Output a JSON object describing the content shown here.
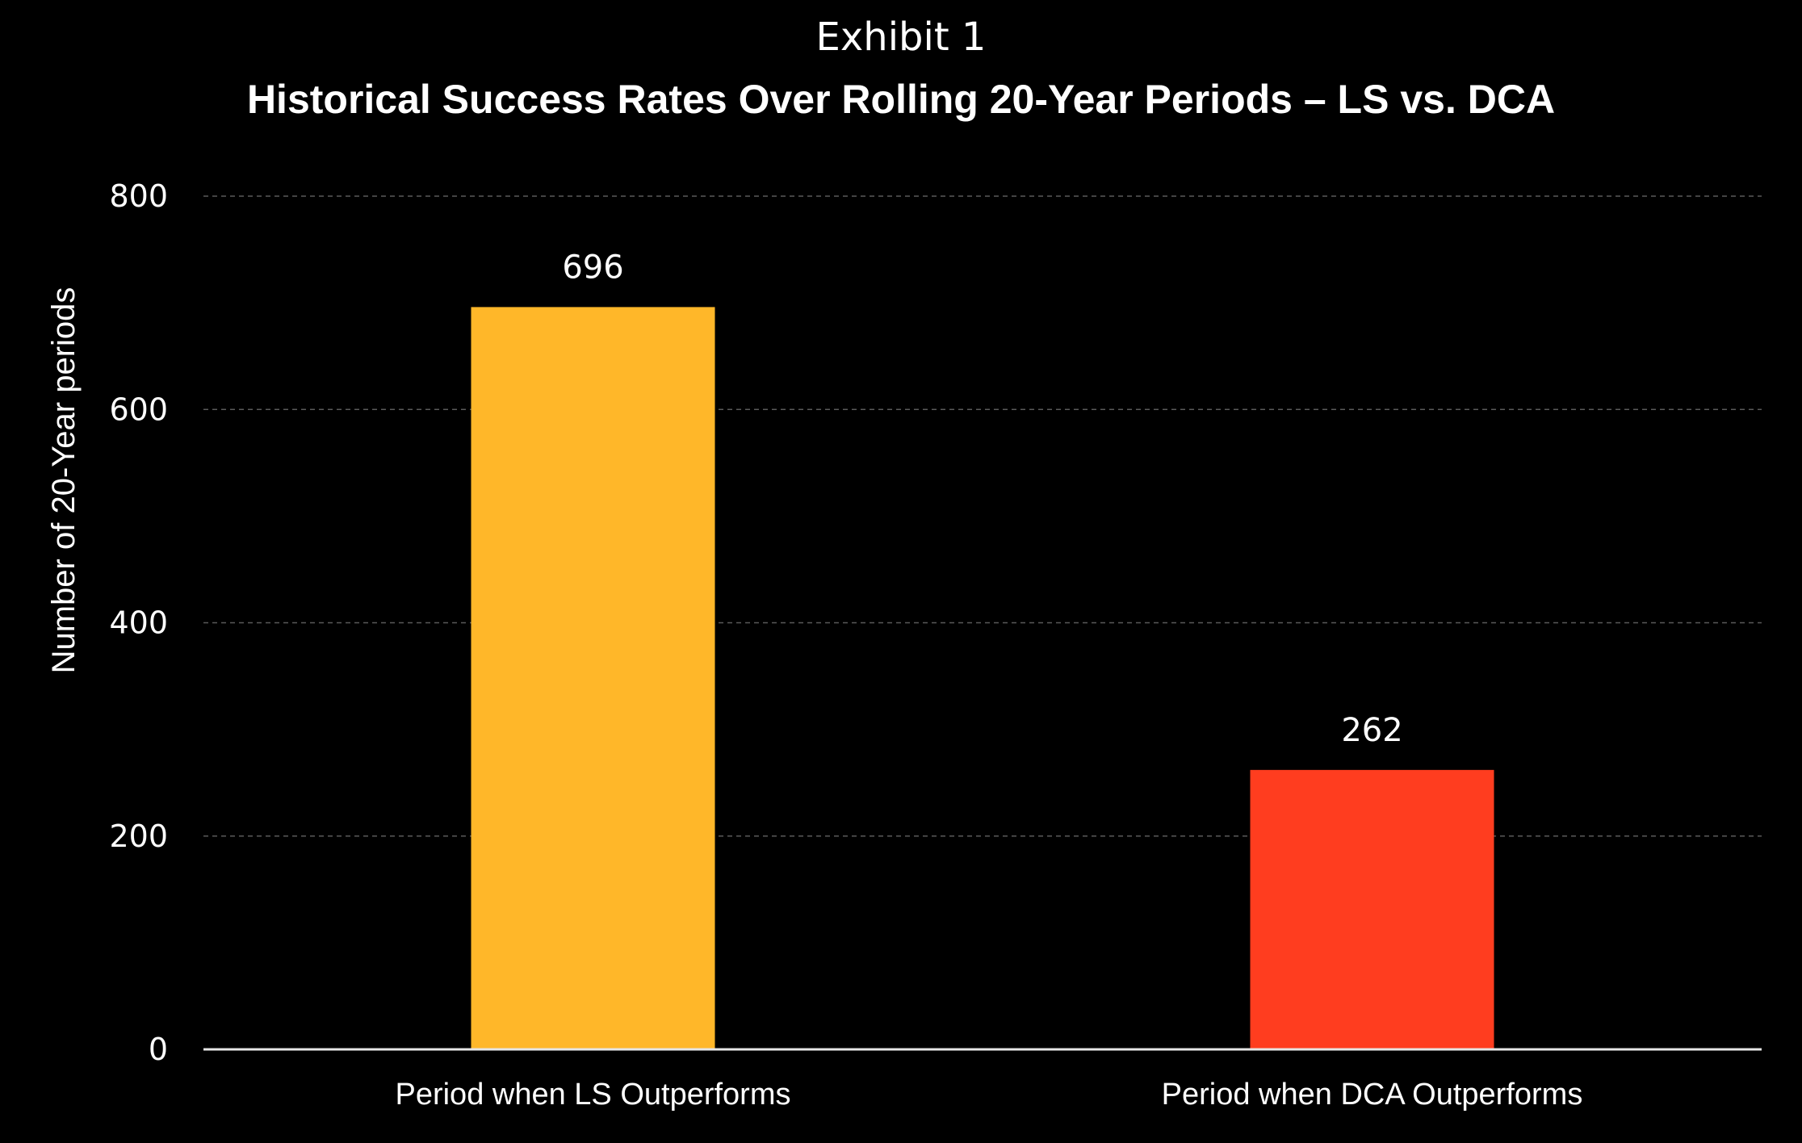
{
  "exhibit_label": "Exhibit 1",
  "chart_data": {
    "type": "bar",
    "title": "Historical Success Rates Over Rolling 20-Year Periods – LS vs. DCA",
    "xlabel": "",
    "ylabel": "Number of 20-Year periods",
    "categories": [
      "Period when LS Outperforms",
      "Period when DCA Outperforms"
    ],
    "values": [
      696,
      262
    ],
    "data_labels": [
      "696",
      "262"
    ],
    "bar_colors": [
      "#FFB729",
      "#FF3D1F"
    ],
    "ylim": [
      0,
      800
    ],
    "yticks": [
      0,
      200,
      400,
      600,
      800
    ],
    "ytick_labels": [
      "0",
      "200",
      "400",
      "600",
      "800"
    ],
    "grid": true,
    "legend": "none"
  },
  "colors": {
    "background": "#000000",
    "text": "#FFFFFF",
    "gridline": "#5A5A5A",
    "axis": "#E6E6E6"
  }
}
